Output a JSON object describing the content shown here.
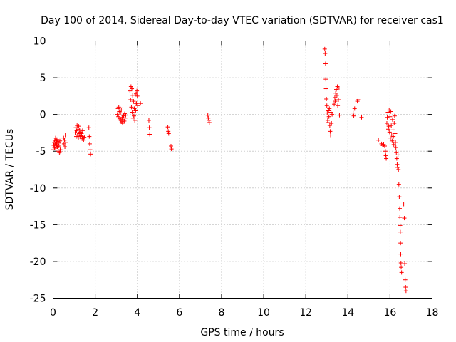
{
  "chart_data": {
    "type": "scatter",
    "title": "Day 100 of 2014, Sidereal Day-to-day VTEC variation (SDTVAR) for receiver cas1",
    "xlabel": "GPS time / hours",
    "ylabel": "SDTVAR / TECUs",
    "xlim": [
      0,
      18
    ],
    "ylim": [
      -25,
      10
    ],
    "xticks": [
      "0",
      "2",
      "4",
      "6",
      "8",
      "10",
      "12",
      "14",
      "16",
      "18"
    ],
    "yticks": [
      "10",
      "5",
      "0",
      "-5",
      "-10",
      "-15",
      "-20",
      "-25"
    ],
    "grid": true,
    "marker": "+",
    "color": "#ff0000",
    "series": [
      {
        "name": "SDTVAR",
        "points": [
          [
            0.0,
            -4.8
          ],
          [
            0.03,
            -4.2
          ],
          [
            0.05,
            -3.8
          ],
          [
            0.07,
            -4.5
          ],
          [
            0.08,
            -3.5
          ],
          [
            0.1,
            -4.0
          ],
          [
            0.12,
            -3.2
          ],
          [
            0.13,
            -4.6
          ],
          [
            0.15,
            -3.6
          ],
          [
            0.17,
            -4.1
          ],
          [
            0.18,
            -3.4
          ],
          [
            0.2,
            -4.4
          ],
          [
            0.22,
            -3.7
          ],
          [
            0.24,
            -5.0
          ],
          [
            0.26,
            -3.9
          ],
          [
            0.28,
            -4.3
          ],
          [
            0.3,
            -5.2
          ],
          [
            0.32,
            -3.6
          ],
          [
            0.34,
            -4.8
          ],
          [
            0.36,
            -5.1
          ],
          [
            0.5,
            -3.2
          ],
          [
            0.52,
            -4.0
          ],
          [
            0.54,
            -3.5
          ],
          [
            0.56,
            -4.4
          ],
          [
            0.58,
            -2.8
          ],
          [
            0.6,
            -3.8
          ],
          [
            1.05,
            -2.5
          ],
          [
            1.08,
            -1.8
          ],
          [
            1.1,
            -3.0
          ],
          [
            1.12,
            -2.2
          ],
          [
            1.14,
            -1.5
          ],
          [
            1.16,
            -2.8
          ],
          [
            1.18,
            -2.0
          ],
          [
            1.2,
            -3.2
          ],
          [
            1.22,
            -1.6
          ],
          [
            1.24,
            -2.6
          ],
          [
            1.26,
            -2.1
          ],
          [
            1.28,
            -3.0
          ],
          [
            1.3,
            -2.4
          ],
          [
            1.32,
            -2.9
          ],
          [
            1.35,
            -2.6
          ],
          [
            1.38,
            -3.3
          ],
          [
            1.4,
            -2.2
          ],
          [
            1.42,
            -3.0
          ],
          [
            1.45,
            -3.5
          ],
          [
            1.48,
            -3.1
          ],
          [
            1.7,
            -1.8
          ],
          [
            1.72,
            -3.0
          ],
          [
            1.74,
            -4.0
          ],
          [
            1.76,
            -4.8
          ],
          [
            1.78,
            -5.4
          ],
          [
            3.05,
            0.0
          ],
          [
            3.08,
            0.8
          ],
          [
            3.1,
            -0.3
          ],
          [
            3.12,
            1.0
          ],
          [
            3.14,
            0.4
          ],
          [
            3.16,
            -0.6
          ],
          [
            3.18,
            0.9
          ],
          [
            3.2,
            0.2
          ],
          [
            3.22,
            -0.8
          ],
          [
            3.24,
            0.6
          ],
          [
            3.26,
            -1.0
          ],
          [
            3.28,
            -0.4
          ],
          [
            3.3,
            -1.2
          ],
          [
            3.32,
            -0.7
          ],
          [
            3.35,
            -0.2
          ],
          [
            3.38,
            -0.9
          ],
          [
            3.4,
            0.1
          ],
          [
            3.42,
            -0.5
          ],
          [
            3.45,
            -0.1
          ],
          [
            3.65,
            3.2
          ],
          [
            3.68,
            2.0
          ],
          [
            3.7,
            3.8
          ],
          [
            3.72,
            1.0
          ],
          [
            3.74,
            3.5
          ],
          [
            3.76,
            0.3
          ],
          [
            3.78,
            2.6
          ],
          [
            3.8,
            -0.5
          ],
          [
            3.82,
            1.8
          ],
          [
            3.84,
            -0.2
          ],
          [
            3.86,
            0.8
          ],
          [
            3.88,
            -0.8
          ],
          [
            3.9,
            1.5
          ],
          [
            3.92,
            0.5
          ],
          [
            3.94,
            2.8
          ],
          [
            3.96,
            1.5
          ],
          [
            3.98,
            3.2
          ],
          [
            4.0,
            2.5
          ],
          [
            4.02,
            1.2
          ],
          [
            4.15,
            1.5
          ],
          [
            4.55,
            -0.8
          ],
          [
            4.57,
            -1.8
          ],
          [
            4.59,
            -2.7
          ],
          [
            5.45,
            -1.7
          ],
          [
            5.47,
            -2.3
          ],
          [
            5.49,
            -2.6
          ],
          [
            5.6,
            -4.3
          ],
          [
            5.62,
            -4.7
          ],
          [
            7.35,
            -0.1
          ],
          [
            7.37,
            -0.5
          ],
          [
            7.4,
            -0.8
          ],
          [
            7.42,
            -1.1
          ],
          [
            12.9,
            8.9
          ],
          [
            12.92,
            8.3
          ],
          [
            12.94,
            6.9
          ],
          [
            12.95,
            4.8
          ],
          [
            12.96,
            3.5
          ],
          [
            12.98,
            2.1
          ],
          [
            13.0,
            1.2
          ],
          [
            13.02,
            0.2
          ],
          [
            13.04,
            -0.8
          ],
          [
            13.06,
            -1.1
          ],
          [
            13.08,
            0.5
          ],
          [
            13.1,
            -0.3
          ],
          [
            13.12,
            0.8
          ],
          [
            13.14,
            -1.5
          ],
          [
            13.16,
            -2.3
          ],
          [
            13.18,
            -2.8
          ],
          [
            13.2,
            0.3
          ],
          [
            13.22,
            -1.2
          ],
          [
            13.25,
            0.0
          ],
          [
            13.35,
            1.4
          ],
          [
            13.38,
            2.3
          ],
          [
            13.4,
            1.8
          ],
          [
            13.42,
            2.9
          ],
          [
            13.45,
            3.4
          ],
          [
            13.48,
            2.6
          ],
          [
            13.5,
            3.8
          ],
          [
            13.52,
            1.2
          ],
          [
            13.55,
            2.0
          ],
          [
            13.58,
            3.6
          ],
          [
            13.6,
            -0.1
          ],
          [
            14.25,
            0.2
          ],
          [
            14.28,
            -0.2
          ],
          [
            14.32,
            0.8
          ],
          [
            14.45,
            1.8
          ],
          [
            14.48,
            2.0
          ],
          [
            14.65,
            -0.4
          ],
          [
            15.45,
            -3.5
          ],
          [
            15.6,
            -4.0
          ],
          [
            15.65,
            -4.2
          ],
          [
            15.7,
            -4.1
          ],
          [
            15.75,
            -4.3
          ],
          [
            15.78,
            -5.0
          ],
          [
            15.8,
            -5.6
          ],
          [
            15.82,
            -6.0
          ],
          [
            15.85,
            -1.2
          ],
          [
            15.87,
            -0.4
          ],
          [
            15.9,
            0.3
          ],
          [
            15.92,
            -2.0
          ],
          [
            15.94,
            -1.6
          ],
          [
            15.96,
            0.6
          ],
          [
            15.98,
            -2.4
          ],
          [
            16.0,
            -0.3
          ],
          [
            16.02,
            -3.2
          ],
          [
            16.04,
            0.4
          ],
          [
            16.06,
            -1.5
          ],
          [
            16.08,
            -2.8
          ],
          [
            16.1,
            -3.6
          ],
          [
            16.12,
            -0.7
          ],
          [
            16.14,
            -2.1
          ],
          [
            16.16,
            -3.0
          ],
          [
            16.18,
            -4.1
          ],
          [
            16.2,
            -1.2
          ],
          [
            16.22,
            -0.2
          ],
          [
            16.24,
            -2.6
          ],
          [
            16.26,
            -3.8
          ],
          [
            16.28,
            -4.5
          ],
          [
            16.3,
            -5.2
          ],
          [
            16.32,
            -6.0
          ],
          [
            16.34,
            -6.8
          ],
          [
            16.36,
            -7.2
          ],
          [
            16.38,
            -5.5
          ],
          [
            16.4,
            -7.5
          ],
          [
            16.42,
            -9.5
          ],
          [
            16.44,
            -11.2
          ],
          [
            16.46,
            -12.8
          ],
          [
            16.47,
            -14.0
          ],
          [
            16.48,
            -15.1
          ],
          [
            16.49,
            -16.0
          ],
          [
            16.5,
            -17.5
          ],
          [
            16.51,
            -19.0
          ],
          [
            16.52,
            -20.2
          ],
          [
            16.53,
            -20.8
          ],
          [
            16.55,
            -21.5
          ],
          [
            16.65,
            -12.2
          ],
          [
            16.68,
            -14.1
          ],
          [
            16.7,
            -20.3
          ],
          [
            16.72,
            -22.5
          ],
          [
            16.74,
            -23.5
          ],
          [
            16.76,
            -24.0
          ]
        ]
      }
    ]
  }
}
